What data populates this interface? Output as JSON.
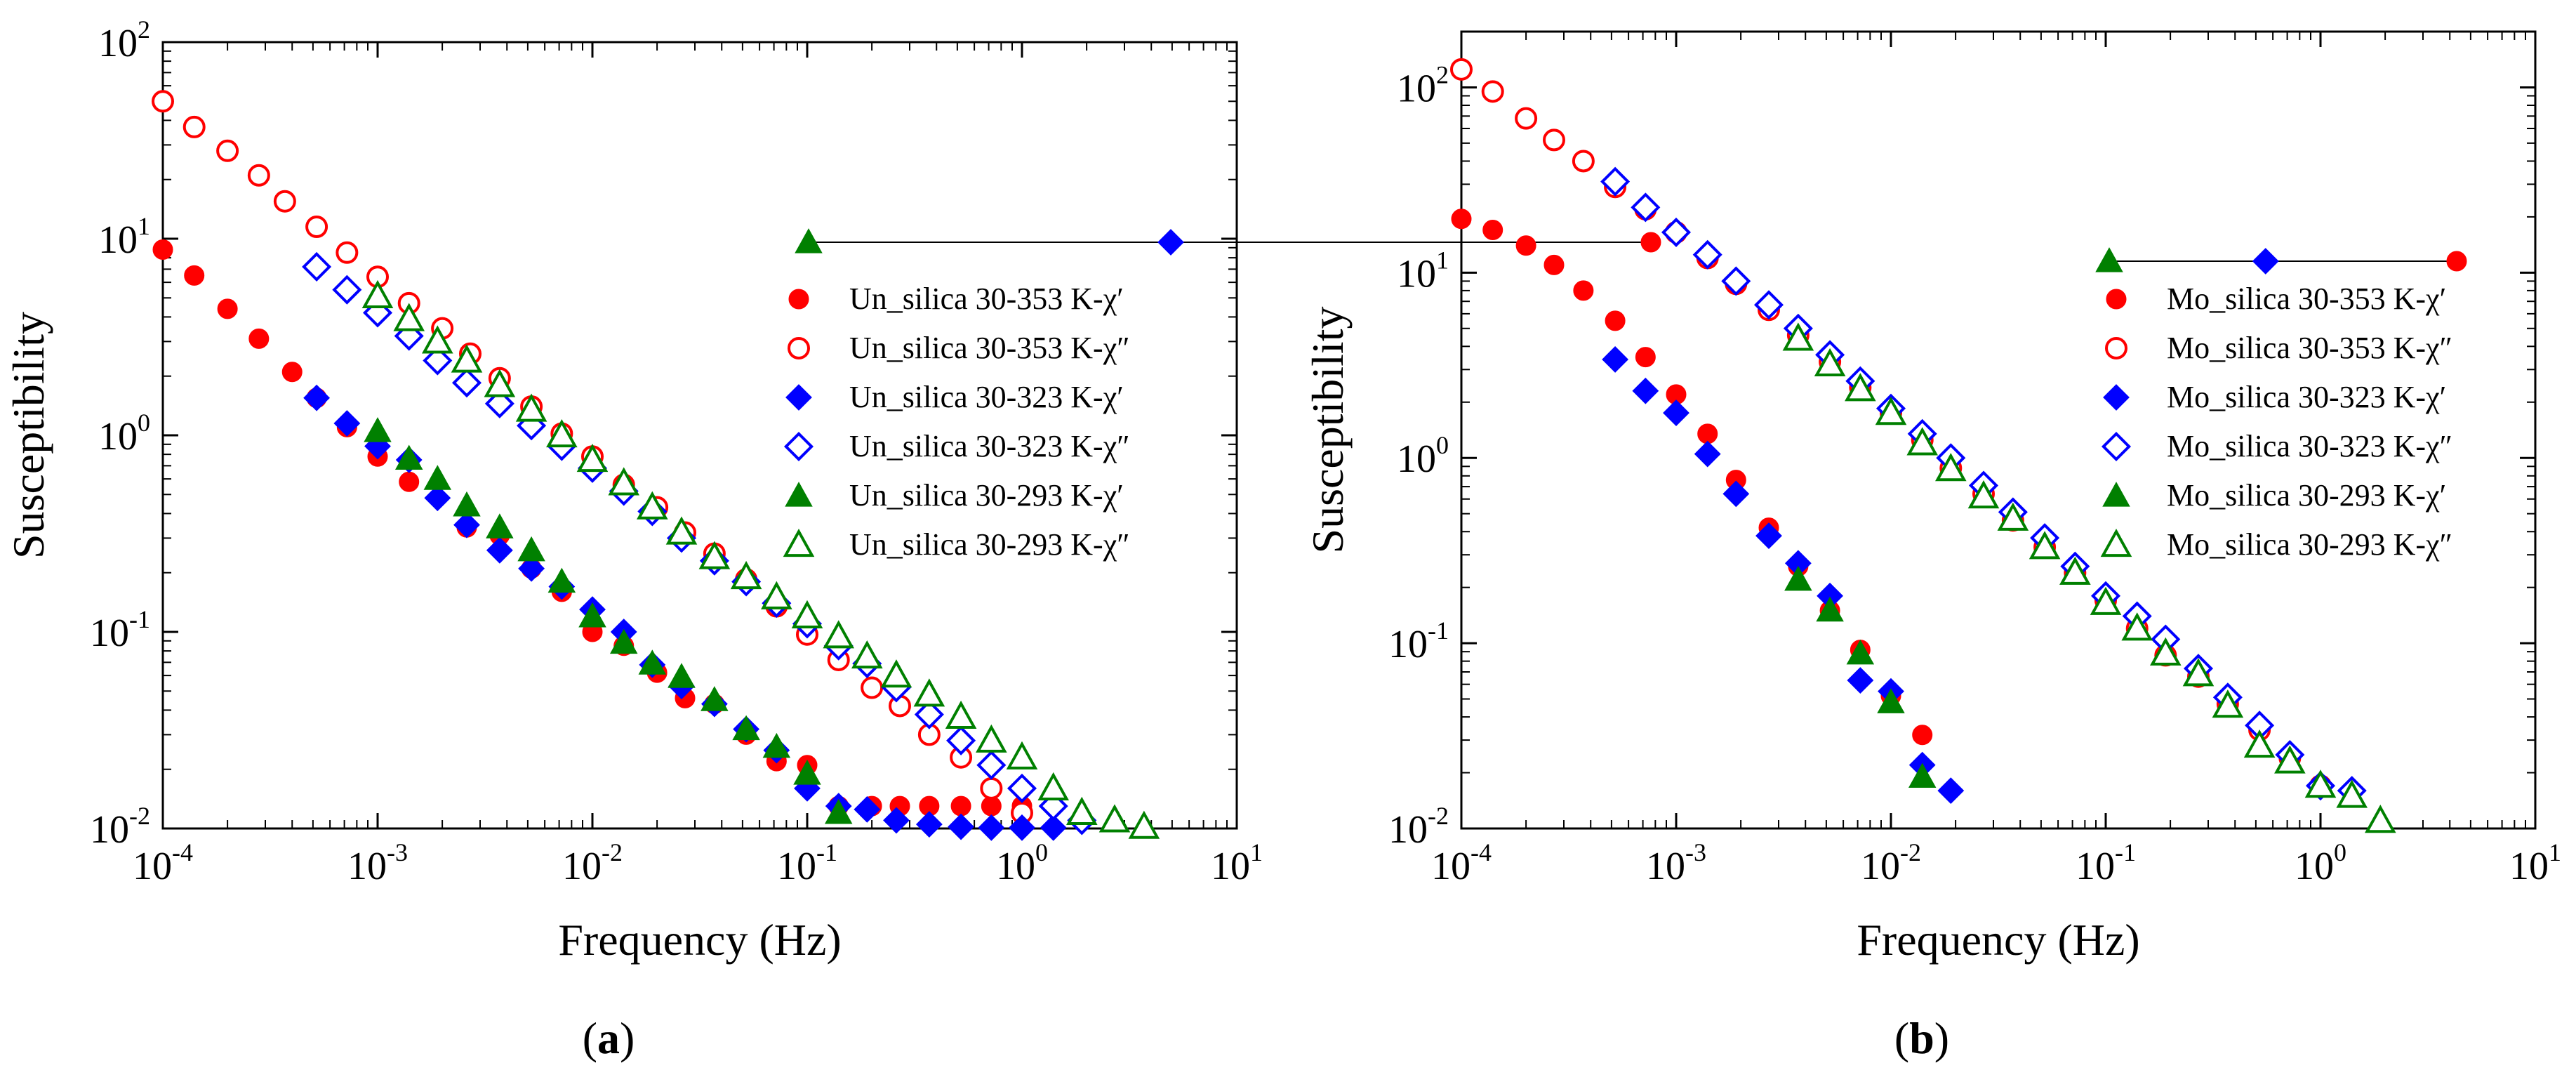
{
  "colors": {
    "red": "#ff0000",
    "blue": "#0000ff",
    "green": "#008000",
    "axis": "#000000"
  },
  "chart_data": [
    {
      "panel_label": {
        "open": "(",
        "letter": "a",
        "close": ")"
      },
      "type": "scatter",
      "title": "",
      "xlabel": "Frequency (Hz)",
      "ylabel": "Susceptibility",
      "xscale": "log",
      "yscale": "log",
      "xlim": [
        0.0001,
        10
      ],
      "ylim": [
        0.01,
        100
      ],
      "x_ticks": [
        {
          "base": "10",
          "exp": "-4"
        },
        {
          "base": "10",
          "exp": "-3"
        },
        {
          "base": "10",
          "exp": "-2"
        },
        {
          "base": "10",
          "exp": "-1"
        },
        {
          "base": "10",
          "exp": "0"
        },
        {
          "base": "10",
          "exp": "1"
        }
      ],
      "y_ticks": [
        {
          "base": "10",
          "exp": "-2"
        },
        {
          "base": "10",
          "exp": "-1"
        },
        {
          "base": "10",
          "exp": "0"
        },
        {
          "base": "10",
          "exp": "1"
        },
        {
          "base": "10",
          "exp": "2"
        }
      ],
      "legend_position": "upper-right",
      "series": [
        {
          "name": "Un_silica 30-353 K-χ′",
          "color": "red",
          "marker": "circle",
          "filled": true,
          "x": [
            0.0001,
            0.00014,
            0.0002,
            0.00028,
            0.0004,
            0.00052,
            0.00072,
            0.001,
            0.0014,
            0.0026,
            0.0037,
            0.0052,
            0.0072,
            0.01,
            0.014,
            0.02,
            0.027,
            0.037,
            0.052,
            0.072,
            0.1,
            0.14,
            0.2,
            0.27,
            0.37,
            0.52,
            0.72,
            1
          ],
          "y": [
            8.8,
            6.5,
            4.4,
            3.1,
            2.1,
            1.55,
            1.1,
            0.78,
            0.58,
            0.34,
            0.31,
            0.21,
            0.16,
            0.1,
            0.085,
            0.062,
            0.046,
            0.043,
            0.03,
            0.022,
            0.021,
            0.013,
            0.013,
            0.013,
            0.013,
            0.013,
            0.013,
            0.013
          ]
        },
        {
          "name": "Un_silica 30-353 K-χ″",
          "color": "red",
          "marker": "circle",
          "filled": false,
          "x": [
            0.0001,
            0.00014,
            0.0002,
            0.00028,
            0.00037,
            0.00052,
            0.00072,
            0.001,
            0.0014,
            0.002,
            0.0027,
            0.0037,
            0.0052,
            0.0072,
            0.01,
            0.014,
            0.02,
            0.027,
            0.037,
            0.052,
            0.072,
            0.1,
            0.14,
            0.2,
            0.27,
            0.37,
            0.52,
            0.72,
            1
          ],
          "y": [
            50,
            37,
            28,
            21,
            15.5,
            11.5,
            8.5,
            6.4,
            4.7,
            3.5,
            2.6,
            1.95,
            1.4,
            1.02,
            0.78,
            0.56,
            0.43,
            0.32,
            0.25,
            0.185,
            0.135,
            0.097,
            0.072,
            0.052,
            0.042,
            0.03,
            0.023,
            0.016,
            0.012
          ]
        },
        {
          "name": "Un_silica 30-323 K-χ′",
          "color": "blue",
          "marker": "diamond",
          "filled": true,
          "x": [
            0.00052,
            0.00072,
            0.001,
            0.0014,
            0.0019,
            0.0026,
            0.0037,
            0.0052,
            0.0072,
            0.01,
            0.014,
            0.019,
            0.026,
            0.037,
            0.052,
            0.072,
            0.1,
            0.14,
            0.19,
            0.26,
            0.37,
            0.52,
            0.72,
            1,
            1.4
          ],
          "y": [
            1.55,
            1.15,
            0.88,
            0.75,
            0.48,
            0.35,
            0.26,
            0.21,
            0.17,
            0.13,
            0.1,
            0.068,
            0.053,
            0.043,
            0.032,
            0.025,
            0.016,
            0.013,
            0.0125,
            0.011,
            0.0105,
            0.0102,
            0.0101,
            0.0101,
            0.0101
          ]
        },
        {
          "name": "Un_silica 30-323 K-χ″",
          "color": "blue",
          "marker": "diamond",
          "filled": false,
          "x": [
            0.00052,
            0.00072,
            0.001,
            0.0014,
            0.0019,
            0.0026,
            0.0037,
            0.0052,
            0.0072,
            0.01,
            0.014,
            0.019,
            0.026,
            0.037,
            0.052,
            0.072,
            0.1,
            0.14,
            0.19,
            0.26,
            0.37,
            0.52,
            0.72,
            1,
            1.4,
            1.9
          ],
          "y": [
            7.2,
            5.5,
            4.2,
            3.2,
            2.4,
            1.85,
            1.45,
            1.12,
            0.88,
            0.68,
            0.52,
            0.41,
            0.3,
            0.23,
            0.18,
            0.14,
            0.11,
            0.085,
            0.069,
            0.052,
            0.038,
            0.028,
            0.021,
            0.016,
            0.013,
            0.011
          ]
        },
        {
          "name": "Un_silica 30-293 K-χ′",
          "color": "green",
          "marker": "triangle",
          "filled": true,
          "x": [
            0.001,
            0.0014,
            0.0019,
            0.0026,
            0.0037,
            0.0052,
            0.0072,
            0.01,
            0.014,
            0.019,
            0.026,
            0.037,
            0.052,
            0.072,
            0.1,
            0.14
          ],
          "y": [
            1.05,
            0.76,
            0.6,
            0.44,
            0.34,
            0.26,
            0.18,
            0.12,
            0.088,
            0.069,
            0.059,
            0.045,
            0.032,
            0.026,
            0.019,
            0.012
          ]
        },
        {
          "name": "Un_silica 30-293 K-χ″",
          "color": "green",
          "marker": "triangle",
          "filled": false,
          "x": [
            0.001,
            0.0014,
            0.0019,
            0.0026,
            0.0037,
            0.0052,
            0.0072,
            0.01,
            0.014,
            0.019,
            0.026,
            0.037,
            0.052,
            0.072,
            0.1,
            0.14,
            0.19,
            0.26,
            0.37,
            0.52,
            0.72,
            1,
            1.4,
            1.9,
            2.7,
            3.7
          ],
          "y": [
            5.1,
            3.9,
            3.0,
            2.4,
            1.8,
            1.35,
            1.0,
            0.75,
            0.57,
            0.43,
            0.32,
            0.24,
            0.19,
            0.15,
            0.12,
            0.095,
            0.075,
            0.06,
            0.048,
            0.037,
            0.028,
            0.023,
            0.016,
            0.012,
            0.011,
            0.0102
          ]
        }
      ]
    },
    {
      "panel_label": {
        "open": "(",
        "letter": "b",
        "close": ")"
      },
      "type": "scatter",
      "title": "",
      "xlabel": "Frequency (Hz)",
      "ylabel": "Susceptibility",
      "xscale": "log",
      "yscale": "log",
      "xlim": [
        0.0001,
        10
      ],
      "ylim": [
        0.01,
        200
      ],
      "x_ticks": [
        {
          "base": "10",
          "exp": "-4"
        },
        {
          "base": "10",
          "exp": "-3"
        },
        {
          "base": "10",
          "exp": "-2"
        },
        {
          "base": "10",
          "exp": "-1"
        },
        {
          "base": "10",
          "exp": "0"
        },
        {
          "base": "10",
          "exp": "1"
        }
      ],
      "y_ticks": [
        {
          "base": "10",
          "exp": "-2"
        },
        {
          "base": "10",
          "exp": "-1"
        },
        {
          "base": "10",
          "exp": "0"
        },
        {
          "base": "10",
          "exp": "1"
        },
        {
          "base": "10",
          "exp": "2"
        }
      ],
      "legend_position": "upper-right",
      "series": [
        {
          "name": "Mo_silica 30-353 K-χ′",
          "color": "red",
          "marker": "circle",
          "filled": true,
          "x": [
            0.0001,
            0.00014,
            0.0002,
            0.00027,
            0.00037,
            0.00052,
            0.00072,
            0.001,
            0.0014,
            0.0019,
            0.0027,
            0.0037,
            0.0052,
            0.0072,
            0.01,
            0.014
          ],
          "y": [
            19.5,
            17,
            14,
            11,
            8,
            5.5,
            3.5,
            2.2,
            1.35,
            0.76,
            0.42,
            0.26,
            0.15,
            0.092,
            0.052,
            0.032
          ]
        },
        {
          "name": "Mo_silica 30-353 K-χ″",
          "color": "red",
          "marker": "circle",
          "filled": false,
          "x": [
            0.0001,
            0.00014,
            0.0002,
            0.00027,
            0.00037,
            0.00052,
            0.00072,
            0.001,
            0.0014,
            0.0019,
            0.0027,
            0.0037,
            0.0052,
            0.0072,
            0.01,
            0.014,
            0.019,
            0.027,
            0.037,
            0.052,
            0.072,
            0.1,
            0.14,
            0.19,
            0.27,
            0.37,
            0.52,
            0.72,
            1
          ],
          "y": [
            125,
            95,
            68,
            52,
            40,
            29,
            22,
            16.5,
            12,
            8.7,
            6.3,
            4.6,
            3.3,
            2.4,
            1.75,
            1.25,
            0.88,
            0.64,
            0.46,
            0.33,
            0.24,
            0.17,
            0.12,
            0.086,
            0.066,
            0.047,
            0.034,
            0.024,
            0.017
          ]
        },
        {
          "name": "Mo_silica 30-323 K-χ′",
          "color": "blue",
          "marker": "diamond",
          "filled": true,
          "x": [
            0.00052,
            0.00072,
            0.001,
            0.0014,
            0.0019,
            0.0027,
            0.0037,
            0.0052,
            0.0072,
            0.01,
            0.014,
            0.019
          ],
          "y": [
            3.4,
            2.3,
            1.75,
            1.05,
            0.64,
            0.38,
            0.27,
            0.18,
            0.063,
            0.055,
            0.022,
            0.016
          ]
        },
        {
          "name": "Mo_silica 30-323 K-χ″",
          "color": "blue",
          "marker": "diamond",
          "filled": false,
          "x": [
            0.00052,
            0.00072,
            0.001,
            0.0014,
            0.0019,
            0.0027,
            0.0037,
            0.0052,
            0.0072,
            0.01,
            0.014,
            0.019,
            0.027,
            0.037,
            0.052,
            0.072,
            0.1,
            0.14,
            0.19,
            0.27,
            0.37,
            0.52,
            0.72,
            1,
            1.4
          ],
          "y": [
            31,
            22.5,
            16.5,
            12.5,
            9,
            6.7,
            5,
            3.6,
            2.6,
            1.85,
            1.35,
            1.0,
            0.71,
            0.51,
            0.37,
            0.26,
            0.18,
            0.14,
            0.105,
            0.073,
            0.051,
            0.036,
            0.025,
            0.017,
            0.016
          ]
        },
        {
          "name": "Mo_silica 30-293 K-χ′",
          "color": "green",
          "marker": "triangle",
          "filled": true,
          "x": [
            0.0037,
            0.0052,
            0.0072,
            0.01,
            0.014
          ],
          "y": [
            0.22,
            0.15,
            0.088,
            0.048,
            0.019
          ]
        },
        {
          "name": "Mo_silica 30-293 K-χ″",
          "color": "green",
          "marker": "triangle",
          "filled": false,
          "x": [
            0.0037,
            0.0052,
            0.0072,
            0.01,
            0.014,
            0.019,
            0.027,
            0.037,
            0.052,
            0.072,
            0.1,
            0.14,
            0.19,
            0.27,
            0.37,
            0.52,
            0.72,
            1,
            1.4,
            1.9
          ],
          "y": [
            4.4,
            3.2,
            2.35,
            1.75,
            1.2,
            0.87,
            0.62,
            0.47,
            0.33,
            0.24,
            0.165,
            0.12,
            0.088,
            0.068,
            0.046,
            0.028,
            0.023,
            0.017,
            0.015,
            0.011
          ]
        }
      ]
    }
  ]
}
